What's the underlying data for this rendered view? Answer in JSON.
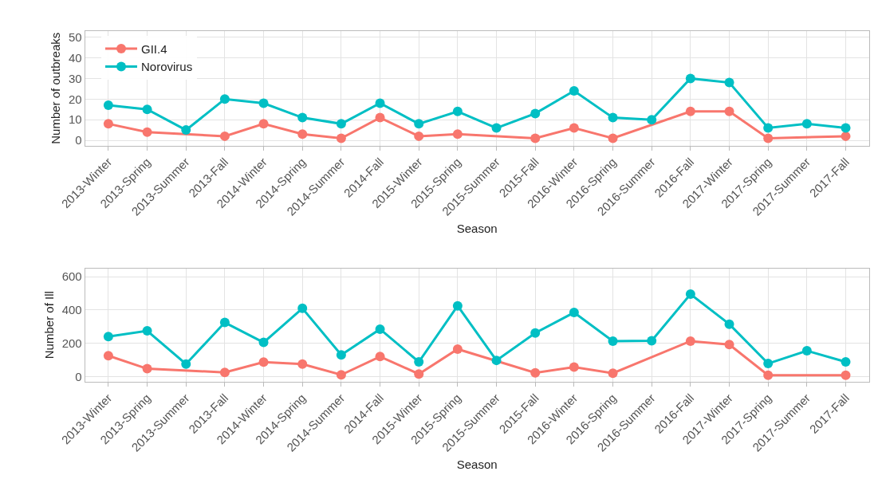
{
  "chart_data": [
    {
      "type": "line",
      "xlabel": "Season",
      "ylabel": "Number of outbreaks",
      "categories": [
        "2013-Winter",
        "2013-Spring",
        "2013-Summer",
        "2013-Fall",
        "2014-Winter",
        "2014-Spring",
        "2014-Summer",
        "2014-Fall",
        "2015-Winter",
        "2015-Spring",
        "2015-Summer",
        "2015-Fall",
        "2016-Winter",
        "2016-Spring",
        "2016-Summer",
        "2016-Fall",
        "2017-Winter",
        "2017-Spring",
        "2017-Summer",
        "2017-Fall"
      ],
      "series": [
        {
          "name": "GII.4",
          "color": "#f8766d",
          "values": [
            8,
            4,
            null,
            2,
            8,
            3,
            1,
            11,
            2,
            3,
            null,
            1,
            6,
            1,
            null,
            14,
            14,
            1,
            null,
            2
          ]
        },
        {
          "name": "Norovirus",
          "color": "#00bfc4",
          "values": [
            17,
            15,
            5,
            20,
            18,
            11,
            8,
            18,
            8,
            14,
            6,
            13,
            24,
            11,
            10,
            30,
            28,
            6,
            8,
            6
          ]
        }
      ],
      "ylim": [
        -2.5,
        53
      ],
      "yticks": [
        0,
        10,
        20,
        30,
        40,
        50
      ],
      "grid": true,
      "legend": "top left",
      "marker": "circle",
      "line_style": "solid"
    },
    {
      "type": "line",
      "xlabel": "Season",
      "ylabel": "Number of Ill",
      "categories": [
        "2013-Winter",
        "2013-Spring",
        "2013-Summer",
        "2013-Fall",
        "2014-Winter",
        "2014-Spring",
        "2014-Summer",
        "2014-Fall",
        "2015-Winter",
        "2015-Spring",
        "2015-Summer",
        "2015-Fall",
        "2016-Winter",
        "2016-Spring",
        "2016-Summer",
        "2016-Fall",
        "2017-Winter",
        "2017-Spring",
        "2017-Summer",
        "2017-Fall"
      ],
      "series": [
        {
          "color": "#f8766d",
          "values": [
            125,
            47,
            null,
            25,
            87,
            75,
            10,
            120,
            15,
            165,
            null,
            22,
            57,
            20,
            null,
            213,
            192,
            8,
            null,
            8
          ]
        },
        {
          "color": "#00bfc4",
          "values": [
            240,
            275,
            75,
            325,
            205,
            410,
            130,
            285,
            88,
            425,
            97,
            262,
            385,
            213,
            215,
            495,
            315,
            78,
            155,
            88
          ]
        }
      ],
      "ylim": [
        -30,
        650
      ],
      "yticks": [
        0,
        200,
        400,
        600
      ],
      "grid": true,
      "marker": "circle",
      "line_style": "solid"
    }
  ]
}
